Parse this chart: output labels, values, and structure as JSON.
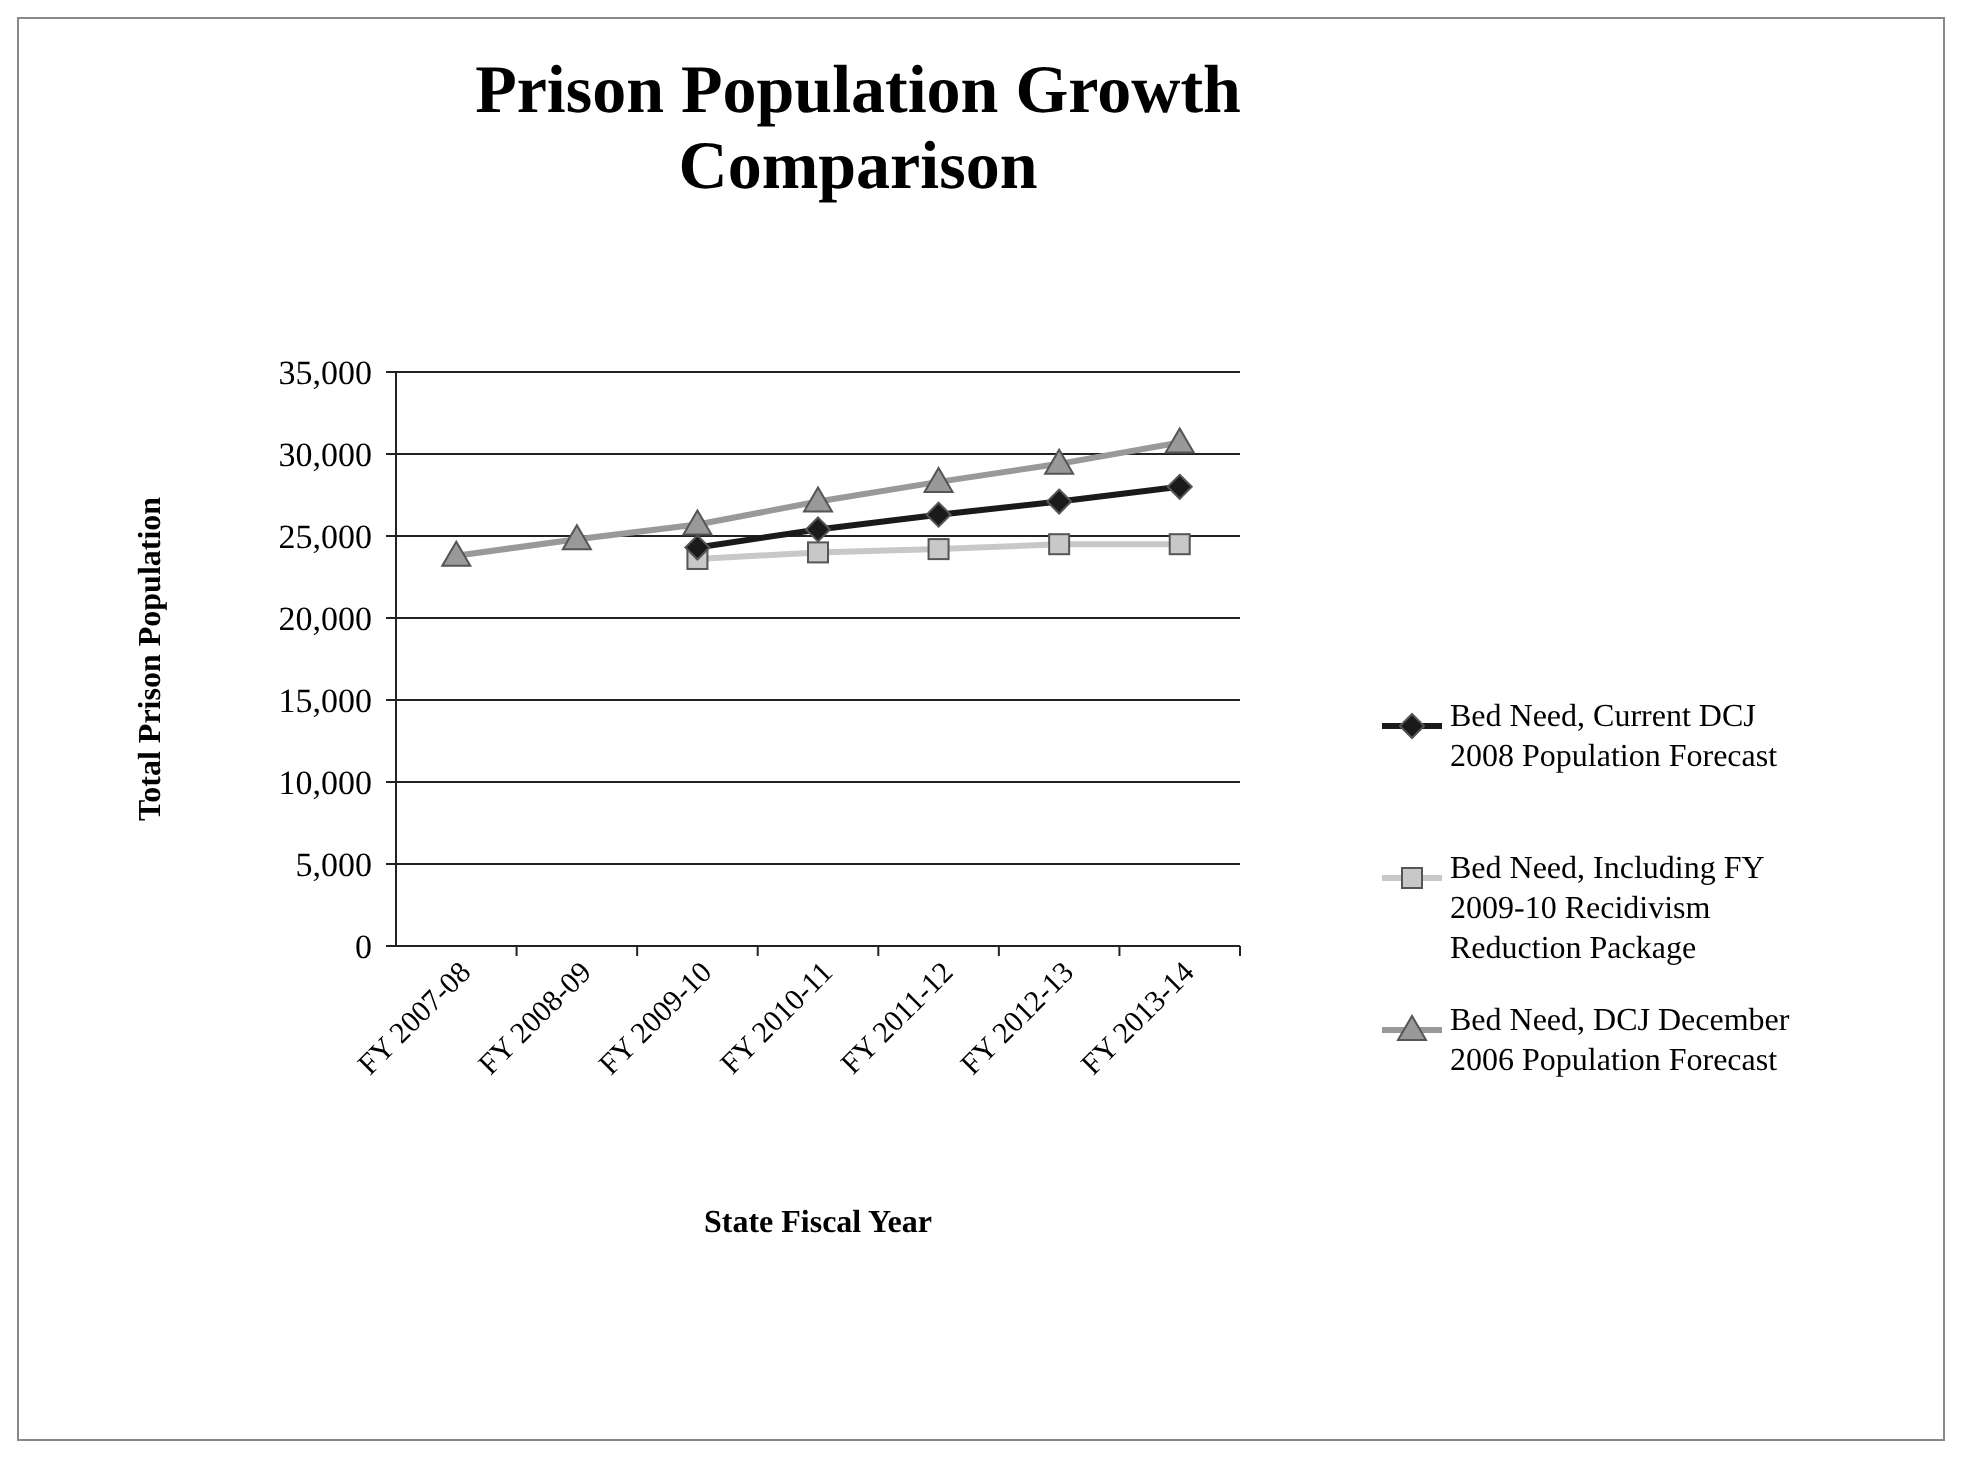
{
  "chart_data": {
    "type": "line",
    "title": "Prison Population Growth Comparison",
    "xlabel": "State Fiscal Year",
    "ylabel": "Total Prison Population",
    "categories": [
      "FY 2007-08",
      "FY 2008-09",
      "FY 2009-10",
      "FY 2010-11",
      "FY 2011-12",
      "FY 2012-13",
      "FY 2013-14"
    ],
    "series": [
      {
        "name": "Bed Need, Current DCJ 2008 Population Forecast",
        "color": "#1a1a1a",
        "marker": "diamond",
        "values": [
          null,
          null,
          24300,
          25400,
          26300,
          27100,
          28000
        ]
      },
      {
        "name": "Bed Need, Including FY 2009-10 Recidivism Reduction Package",
        "color": "#c8c8c8",
        "marker": "square",
        "values": [
          null,
          null,
          23600,
          24000,
          24200,
          24500,
          24500
        ]
      },
      {
        "name": "Bed Need, DCJ December 2006 Population Forecast",
        "color": "#999999",
        "marker": "triangle",
        "values": [
          23800,
          24800,
          25700,
          27100,
          28300,
          29400,
          30700
        ]
      }
    ],
    "ylim": [
      0,
      35000
    ],
    "yticks": [
      {
        "value": 0,
        "label": "0"
      },
      {
        "value": 5000,
        "label": "5,000"
      },
      {
        "value": 10000,
        "label": "10,000"
      },
      {
        "value": 15000,
        "label": "15,000"
      },
      {
        "value": 20000,
        "label": "20,000"
      },
      {
        "value": 25000,
        "label": "25,000"
      },
      {
        "value": 30000,
        "label": "30,000"
      },
      {
        "value": 35000,
        "label": "35,000"
      }
    ],
    "grid": "y",
    "legend": "right"
  }
}
